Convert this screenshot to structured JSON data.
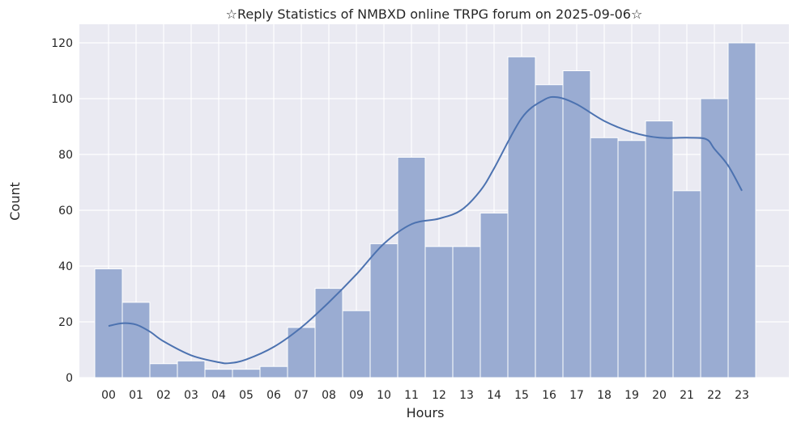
{
  "chart_data": {
    "type": "bar",
    "title": "☆Reply Statistics of NMBXD online TRPG forum on 2025-09-06☆",
    "xlabel": "Hours",
    "ylabel": "Count",
    "categories": [
      "00",
      "01",
      "02",
      "03",
      "04",
      "05",
      "06",
      "07",
      "08",
      "09",
      "10",
      "11",
      "12",
      "13",
      "14",
      "15",
      "16",
      "17",
      "18",
      "19",
      "20",
      "21",
      "22",
      "23"
    ],
    "values": [
      39,
      27,
      5,
      6,
      3,
      3,
      4,
      18,
      32,
      24,
      48,
      79,
      47,
      47,
      59,
      115,
      105,
      110,
      86,
      85,
      92,
      67,
      100,
      120
    ],
    "ylim": [
      0,
      126
    ],
    "yticks": [
      0,
      20,
      40,
      60,
      80,
      100,
      120
    ],
    "grid": true,
    "kde": {
      "x": [
        0,
        0.5,
        1,
        1.5,
        2,
        3,
        4,
        4.4,
        5,
        6,
        7,
        8,
        9,
        10,
        11,
        12,
        12.8,
        13.5,
        14,
        15,
        15.8,
        16.3,
        17,
        18,
        19,
        20,
        21,
        21.7,
        22,
        22.5,
        23
      ],
      "y": [
        18.5,
        19.5,
        19,
        16.5,
        13,
        8,
        5.5,
        5.2,
        6.5,
        11,
        18,
        27,
        37,
        48,
        55,
        57,
        60,
        67,
        75,
        93,
        99.5,
        100.5,
        98,
        92,
        88,
        86,
        86,
        85.5,
        82,
        76,
        67
      ]
    },
    "colors": {
      "background": "#EAEAF2",
      "bar": "#9AACD2",
      "line": "#4C72B0",
      "grid": "#FFFFFF"
    }
  }
}
